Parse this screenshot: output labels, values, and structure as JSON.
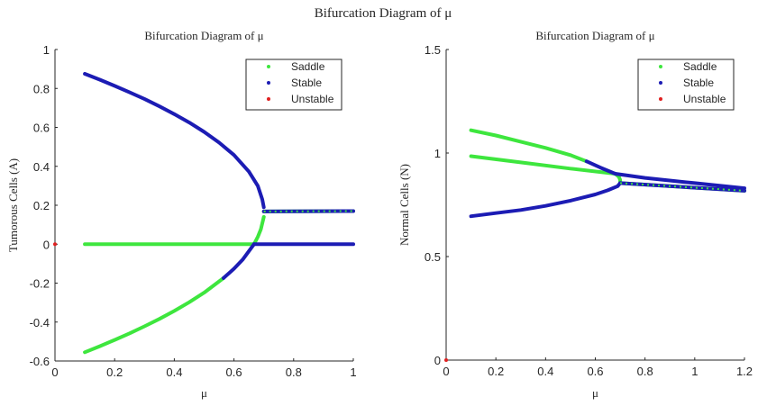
{
  "figure_title": "Bifurcation Diagram of μ",
  "colors": {
    "saddle": "#3ee63e",
    "stable": "#1c1cb4",
    "unstable": "#e02020"
  },
  "chart_data": [
    {
      "type": "scatter",
      "title": "Bifurcation Diagram of μ",
      "xlabel": "μ",
      "ylabel": "Tumorous Cells (A)",
      "xlim": [
        0,
        1
      ],
      "ylim": [
        -0.6,
        1
      ],
      "xticks": [
        "0",
        "0.2",
        "0.4",
        "0.6",
        "0.8",
        "1"
      ],
      "yticks": [
        "-0.6",
        "-0.4",
        "-0.2",
        "0",
        "0.2",
        "0.4",
        "0.6",
        "0.8",
        "1"
      ],
      "grid": false,
      "legend": {
        "placement": "top-right",
        "entries": [
          "Saddle",
          "Stable",
          "Unstable"
        ]
      },
      "series": [
        {
          "name": "Saddle",
          "segments": [
            [
              [
                0.1,
                -0.555
              ],
              [
                0.15,
                -0.524
              ],
              [
                0.2,
                -0.492
              ],
              [
                0.25,
                -0.458
              ],
              [
                0.3,
                -0.422
              ],
              [
                0.35,
                -0.384
              ],
              [
                0.4,
                -0.343
              ],
              [
                0.45,
                -0.298
              ],
              [
                0.5,
                -0.249
              ],
              [
                0.565,
                -0.174
              ]
            ],
            [
              [
                0.667,
                0
              ],
              [
                0.68,
                0.038
              ],
              [
                0.69,
                0.076
              ],
              [
                0.7,
                0.14
              ]
            ],
            [
              [
                0.1,
                0
              ],
              [
                0.667,
                0
              ]
            ],
            [
              [
                0.7,
                0.168
              ],
              [
                1,
                0.17
              ]
            ]
          ]
        },
        {
          "name": "Stable",
          "segments": [
            [
              [
                0.1,
                0.875
              ],
              [
                0.15,
                0.845
              ],
              [
                0.2,
                0.813
              ],
              [
                0.25,
                0.78
              ],
              [
                0.3,
                0.746
              ],
              [
                0.35,
                0.708
              ],
              [
                0.4,
                0.668
              ],
              [
                0.45,
                0.625
              ],
              [
                0.5,
                0.577
              ],
              [
                0.55,
                0.522
              ],
              [
                0.6,
                0.458
              ],
              [
                0.65,
                0.373
              ],
              [
                0.68,
                0.299
              ],
              [
                0.695,
                0.23
              ],
              [
                0.7,
                0.19
              ]
            ],
            [
              [
                0.565,
                -0.174
              ],
              [
                0.6,
                -0.126
              ],
              [
                0.63,
                -0.078
              ],
              [
                0.667,
                0
              ]
            ],
            [
              [
                0.667,
                0
              ],
              [
                1,
                0
              ]
            ],
            [
              [
                0.7,
                0.168
              ],
              [
                1,
                0.17
              ]
            ]
          ]
        },
        {
          "name": "Unstable",
          "points": [
            [
              0,
              0
            ]
          ]
        }
      ]
    },
    {
      "type": "scatter",
      "title": "Bifurcation Diagram of μ",
      "xlabel": "μ",
      "ylabel": "Normal Cells (N)",
      "xlim": [
        0,
        1.2
      ],
      "ylim": [
        0,
        1.5
      ],
      "xticks": [
        "0",
        "0.2",
        "0.4",
        "0.6",
        "0.8",
        "1",
        "1.2"
      ],
      "yticks": [
        "0",
        "0.5",
        "1",
        "1.5"
      ],
      "grid": false,
      "legend": {
        "placement": "top-right",
        "entries": [
          "Saddle",
          "Stable",
          "Unstable"
        ]
      },
      "series": [
        {
          "name": "Saddle",
          "segments": [
            [
              [
                0.1,
                1.11
              ],
              [
                0.2,
                1.085
              ],
              [
                0.3,
                1.055
              ],
              [
                0.4,
                1.025
              ],
              [
                0.5,
                0.99
              ],
              [
                0.565,
                0.96
              ]
            ],
            [
              [
                0.1,
                0.985
              ],
              [
                0.3,
                0.955
              ],
              [
                0.5,
                0.925
              ],
              [
                0.68,
                0.9
              ]
            ],
            [
              [
                0.68,
                0.9
              ],
              [
                0.695,
                0.885
              ],
              [
                0.7,
                0.87
              ],
              [
                0.7,
                0.855
              ]
            ],
            [
              [
                0.7,
                0.855
              ],
              [
                1.2,
                0.818
              ]
            ]
          ]
        },
        {
          "name": "Stable",
          "segments": [
            [
              [
                0.565,
                0.96
              ],
              [
                0.62,
                0.93
              ],
              [
                0.68,
                0.9
              ]
            ],
            [
              [
                0.68,
                0.9
              ],
              [
                0.8,
                0.88
              ],
              [
                1.0,
                0.855
              ],
              [
                1.2,
                0.83
              ]
            ],
            [
              [
                0.1,
                0.695
              ],
              [
                0.2,
                0.71
              ],
              [
                0.3,
                0.725
              ],
              [
                0.4,
                0.745
              ],
              [
                0.5,
                0.77
              ],
              [
                0.6,
                0.8
              ],
              [
                0.65,
                0.82
              ],
              [
                0.69,
                0.84
              ],
              [
                0.7,
                0.855
              ]
            ],
            [
              [
                0.7,
                0.855
              ],
              [
                1.2,
                0.818
              ]
            ]
          ]
        },
        {
          "name": "Unstable",
          "points": [
            [
              0,
              0
            ]
          ]
        }
      ]
    }
  ]
}
